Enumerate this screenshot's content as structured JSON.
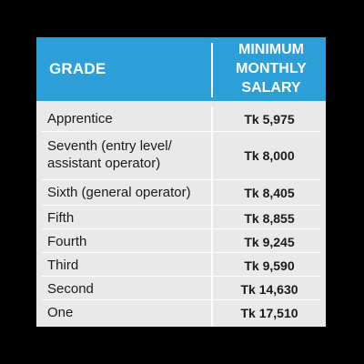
{
  "table": {
    "header": {
      "grade": "GRADE",
      "salary_line1": "MINIMUM",
      "salary_line2": "MONTHLY",
      "salary_line3": "SALARY"
    },
    "rows": [
      {
        "grade_line1": "Apprentice",
        "grade_line2": "",
        "salary": "Tk 5,975"
      },
      {
        "grade_line1": "Seventh (entry level/",
        "grade_line2": "assistant operator)",
        "salary": "Tk 8,000"
      },
      {
        "grade_line1": "Sixth (general operator)",
        "grade_line2": "",
        "salary": "Tk 8,405"
      },
      {
        "grade_line1": "Fifth",
        "grade_line2": "",
        "salary": "Tk 8,855"
      },
      {
        "grade_line1": "Fourth",
        "grade_line2": "",
        "salary": "Tk 9,245"
      },
      {
        "grade_line1": "Third",
        "grade_line2": "",
        "salary": "Tk 9,590"
      },
      {
        "grade_line1": "Second",
        "grade_line2": "",
        "salary": "Tk 14,630"
      },
      {
        "grade_line1": "One",
        "grade_line2": "",
        "salary": "Tk 17,510"
      }
    ],
    "colors": {
      "header_background": "#2c9fd8",
      "body_background": "#e9e9e9",
      "page_background": "#000000"
    }
  }
}
